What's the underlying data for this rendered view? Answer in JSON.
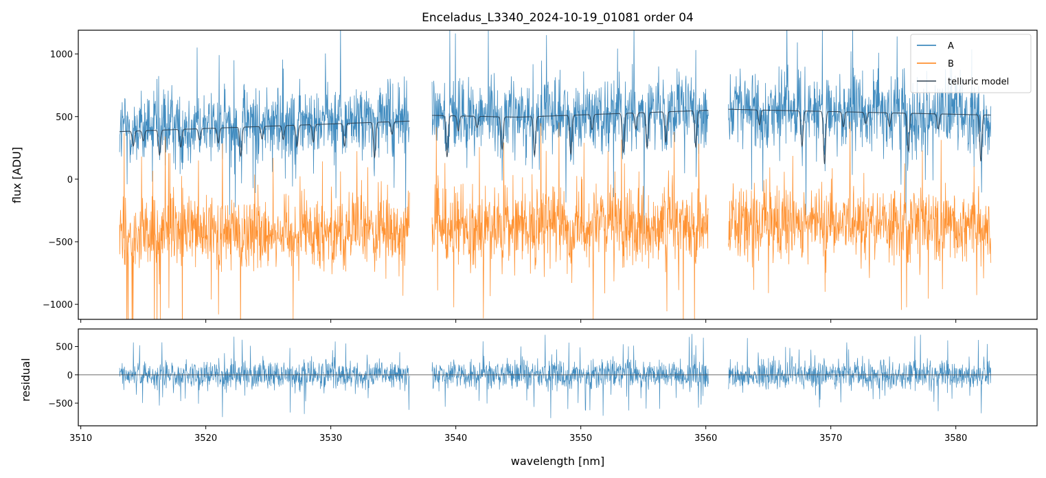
{
  "chart_data": [
    {
      "type": "line",
      "title": "Enceladus_L3340_2024-10-19_01081  order 04",
      "xlabel": "",
      "ylabel": "flux [ADU]",
      "xlim": [
        3509.8,
        3586.5
      ],
      "ylim": [
        -1120,
        1190
      ],
      "yticks": [
        -1000,
        -500,
        0,
        500,
        1000
      ],
      "ytick_labels": [
        "−1000",
        "−500",
        "0",
        "500",
        "1000"
      ],
      "xticks": [
        3510,
        3520,
        3530,
        3540,
        3550,
        3560,
        3570,
        3580
      ],
      "segments": [
        [
          3513.1,
          3536.3
        ],
        [
          3538.1,
          3560.2
        ],
        [
          3561.8,
          3582.8
        ]
      ],
      "legend_position": "top-right",
      "series": [
        {
          "name": "A",
          "color": "#1f77b4",
          "center": 500,
          "noise": 260
        },
        {
          "name": "B",
          "color": "#ff7f0e",
          "center": -380,
          "noise": 260
        },
        {
          "name": "telluric model",
          "color": "#2b3e4f",
          "continuum_start": 380,
          "continuum_end": 560,
          "lines": [
            {
              "x": 3514.2,
              "depth": 120
            },
            {
              "x": 3515.0,
              "depth": 80
            },
            {
              "x": 3516.3,
              "depth": 200
            },
            {
              "x": 3518.0,
              "depth": 140
            },
            {
              "x": 3519.5,
              "depth": 90
            },
            {
              "x": 3521.0,
              "depth": 120
            },
            {
              "x": 3522.8,
              "depth": 230
            },
            {
              "x": 3524.5,
              "depth": 100
            },
            {
              "x": 3526.2,
              "depth": 110
            },
            {
              "x": 3527.3,
              "depth": 170
            },
            {
              "x": 3528.6,
              "depth": 140
            },
            {
              "x": 3531.1,
              "depth": 180
            },
            {
              "x": 3533.5,
              "depth": 280
            },
            {
              "x": 3534.9,
              "depth": 100
            },
            {
              "x": 3539.3,
              "depth": 330
            },
            {
              "x": 3540.2,
              "depth": 120
            },
            {
              "x": 3541.7,
              "depth": 90
            },
            {
              "x": 3543.7,
              "depth": 260
            },
            {
              "x": 3546.3,
              "depth": 310
            },
            {
              "x": 3549.2,
              "depth": 310
            },
            {
              "x": 3550.9,
              "depth": 120
            },
            {
              "x": 3553.4,
              "depth": 310
            },
            {
              "x": 3554.4,
              "depth": 130
            },
            {
              "x": 3555.3,
              "depth": 280
            },
            {
              "x": 3556.8,
              "depth": 240
            },
            {
              "x": 3559.2,
              "depth": 290
            },
            {
              "x": 3564.3,
              "depth": 120
            },
            {
              "x": 3567.7,
              "depth": 280
            },
            {
              "x": 3569.5,
              "depth": 420
            },
            {
              "x": 3571.0,
              "depth": 120
            },
            {
              "x": 3572.8,
              "depth": 90
            },
            {
              "x": 3574.7,
              "depth": 110
            },
            {
              "x": 3576.2,
              "depth": 300
            },
            {
              "x": 3578.6,
              "depth": 120
            },
            {
              "x": 3582.0,
              "depth": 370
            }
          ]
        }
      ]
    },
    {
      "type": "line",
      "title": "",
      "xlabel": "wavelength [nm]",
      "ylabel": "residual",
      "xlim": [
        3509.8,
        3586.5
      ],
      "ylim": [
        -900,
        810
      ],
      "yticks": [
        -500,
        0,
        500
      ],
      "ytick_labels": [
        "−500",
        "0",
        "500"
      ],
      "xticks": [
        3510,
        3520,
        3530,
        3540,
        3550,
        3560,
        3570,
        3580
      ],
      "xtick_labels": [
        "3510",
        "3520",
        "3530",
        "3540",
        "3550",
        "3560",
        "3570",
        "3580"
      ],
      "segments": [
        [
          3513.1,
          3536.3
        ],
        [
          3538.1,
          3560.2
        ],
        [
          3561.8,
          3582.8
        ]
      ],
      "series": [
        {
          "name": "residual",
          "color": "#1f77b4",
          "center": 0,
          "noise": 230
        }
      ],
      "zero_line": 0
    }
  ]
}
